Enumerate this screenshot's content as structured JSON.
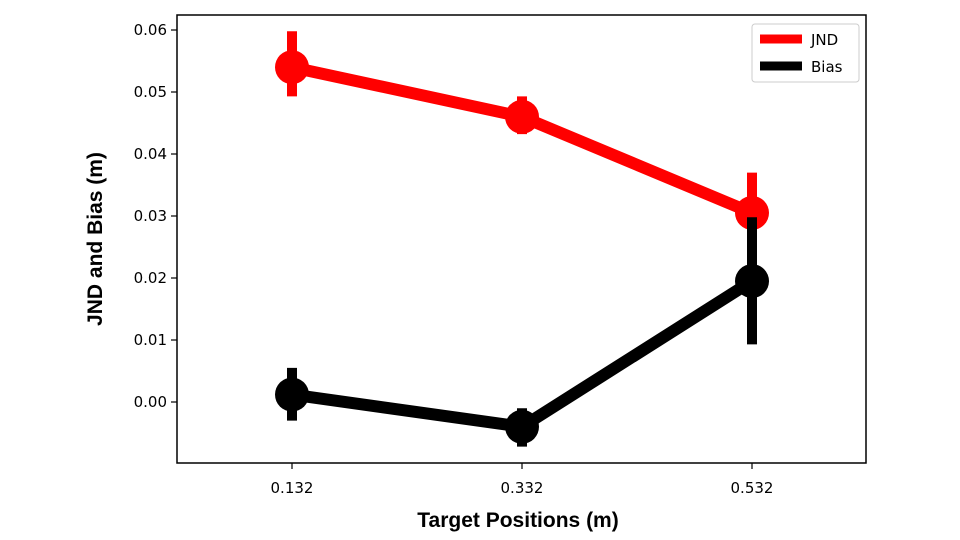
{
  "chart_data": {
    "type": "line",
    "xlabel": "Target Positions (m)",
    "ylabel": "JND and Bias (m)",
    "categories": [
      "0.132",
      "0.332",
      "0.532"
    ],
    "ylim": [
      -0.01,
      0.062
    ],
    "yticks": [
      "0.00",
      "0.01",
      "0.02",
      "0.03",
      "0.04",
      "0.05",
      "0.06"
    ],
    "grid": false,
    "legend_position": "top-right",
    "series": [
      {
        "name": "JND",
        "color": "#ff0000",
        "values": [
          0.054,
          0.046,
          0.0305
        ],
        "error_low": [
          0.0493,
          0.0432,
          0.0245
        ],
        "error_high": [
          0.0598,
          0.0493,
          0.037
        ]
      },
      {
        "name": "Bias",
        "color": "#000000",
        "values": [
          0.0012,
          -0.004,
          0.0195
        ],
        "error_low": [
          -0.003,
          -0.0072,
          0.0093
        ],
        "error_high": [
          0.0055,
          -0.001,
          0.0298
        ]
      }
    ]
  }
}
